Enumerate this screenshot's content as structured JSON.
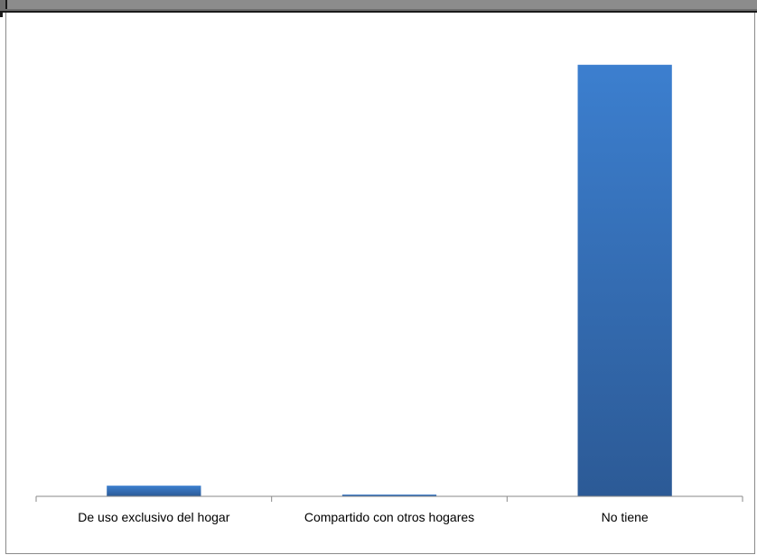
{
  "chart_data": {
    "type": "bar",
    "title": "",
    "xlabel": "",
    "ylabel": "",
    "categories": [
      "De uso exclusivo del hogar",
      "Compartido con otros hogares",
      "No tiene"
    ],
    "values": [
      2.4,
      0.4,
      97.2
    ],
    "ylim": [
      0,
      100
    ],
    "grid": false,
    "legend": "none",
    "colors": {
      "bar_top": "#3c7fcf",
      "bar_bottom": "#2c5a96",
      "axis": "#8a8a8a"
    }
  }
}
